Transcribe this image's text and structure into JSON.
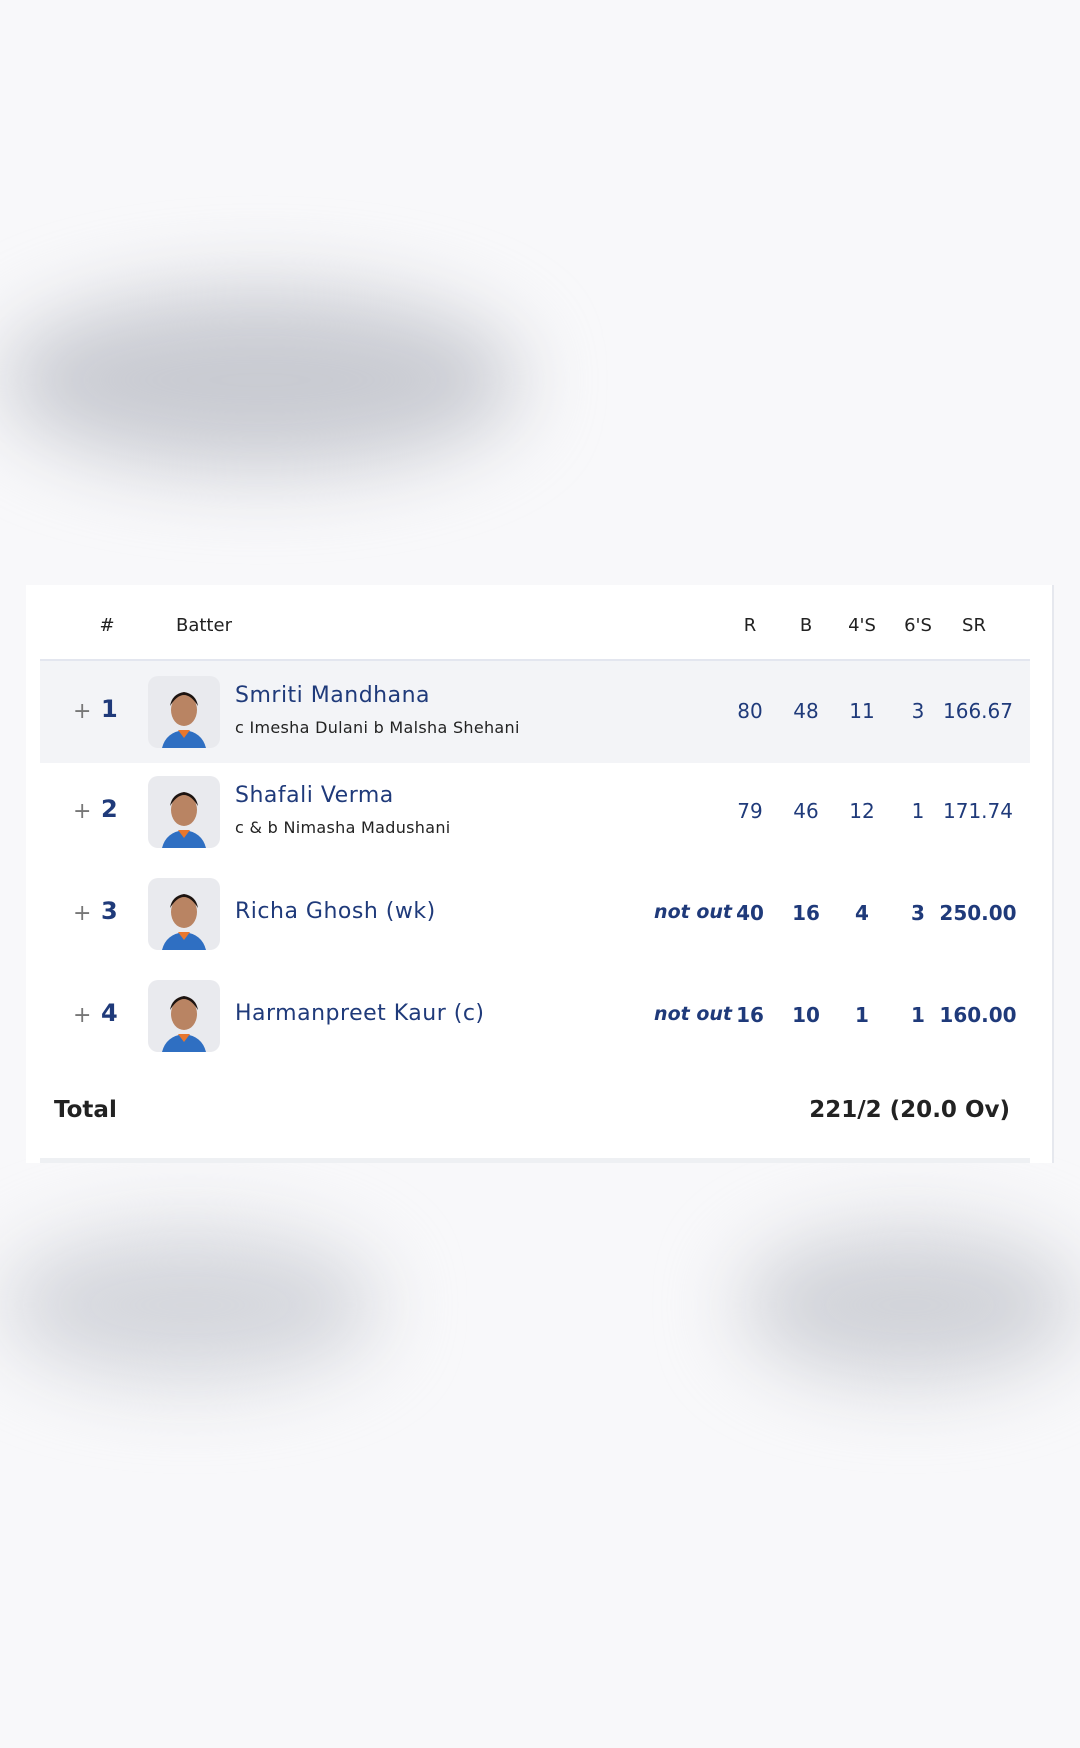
{
  "header": {
    "no": "#",
    "batter": "Batter",
    "r": "R",
    "b": "B",
    "fours": "4'S",
    "sixes": "6'S",
    "sr": "SR"
  },
  "batters": [
    {
      "no": "1",
      "name": "Smriti Mandhana",
      "dismissal": "c Imesha Dulani b Malsha Shehani",
      "status": "",
      "r": "80",
      "b": "48",
      "fours": "11",
      "sixes": "3",
      "sr": "166.67"
    },
    {
      "no": "2",
      "name": "Shafali Verma",
      "dismissal": "c & b Nimasha Madushani",
      "status": "",
      "r": "79",
      "b": "46",
      "fours": "12",
      "sixes": "1",
      "sr": "171.74"
    },
    {
      "no": "3",
      "name": "Richa Ghosh (wk)",
      "dismissal": "",
      "status": "not out",
      "r": "40",
      "b": "16",
      "fours": "4",
      "sixes": "3",
      "sr": "250.00"
    },
    {
      "no": "4",
      "name": "Harmanpreet Kaur (c)",
      "dismissal": "",
      "status": "not out",
      "r": "16",
      "b": "10",
      "fours": "1",
      "sixes": "1",
      "sr": "160.00"
    }
  ],
  "expand_symbol": "+",
  "total": {
    "label": "Total",
    "value": "221/2 (20.0 Ov)"
  },
  "colors": {
    "accent": "#1f3a7a",
    "row_highlight": "#f3f4f7"
  }
}
